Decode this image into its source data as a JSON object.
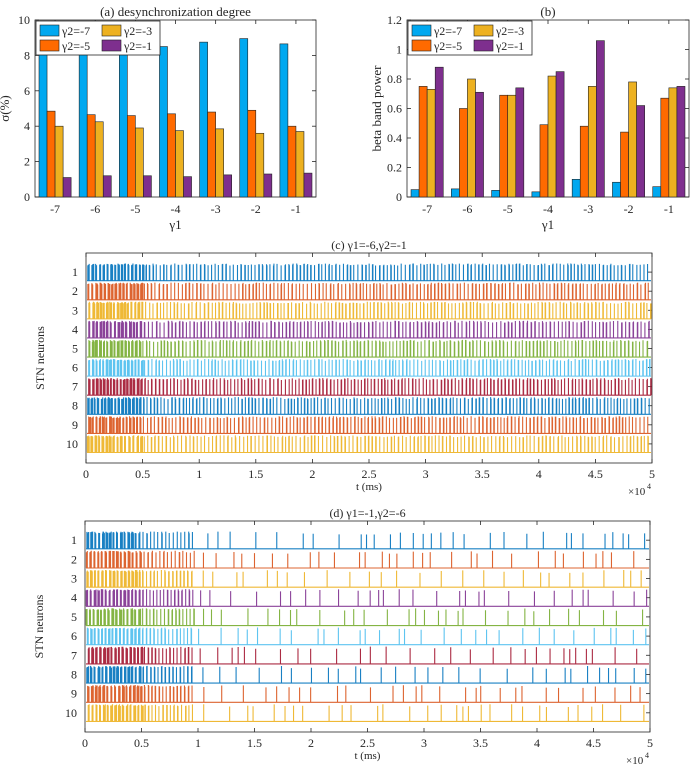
{
  "chart_data": [
    {
      "id": "a",
      "type": "bar",
      "title": "(a) desynchronization degree",
      "xlabel": "γ1",
      "ylabel": "σ(%)",
      "categories": [
        "-7",
        "-6",
        "-5",
        "-4",
        "-3",
        "-2",
        "-1"
      ],
      "ylim": [
        0,
        10
      ],
      "yticks": [
        "0",
        "2",
        "4",
        "6",
        "8",
        "10"
      ],
      "legend_position": "top-left",
      "series": [
        {
          "name": "γ2=-7",
          "color": "#00A8F0",
          "values": [
            8.15,
            8.25,
            8.35,
            8.5,
            8.75,
            8.95,
            8.65
          ]
        },
        {
          "name": "γ2=-5",
          "color": "#FF6A00",
          "values": [
            4.85,
            4.65,
            4.6,
            4.7,
            4.8,
            4.9,
            4.0
          ]
        },
        {
          "name": "γ2=-3",
          "color": "#EDB120",
          "values": [
            4.0,
            4.25,
            3.9,
            3.75,
            3.85,
            3.6,
            3.7
          ]
        },
        {
          "name": "γ2=-1",
          "color": "#7E2F8E",
          "values": [
            1.1,
            1.2,
            1.2,
            1.15,
            1.25,
            1.3,
            1.35
          ]
        }
      ]
    },
    {
      "id": "b",
      "type": "bar",
      "title": "(b)",
      "xlabel": "γ1",
      "ylabel": "beta band power",
      "categories": [
        "-7",
        "-6",
        "-5",
        "-4",
        "-3",
        "-2",
        "-1"
      ],
      "ylim": [
        0,
        1.2
      ],
      "yticks": [
        "0",
        "0.2",
        "0.4",
        "0.6",
        "0.8",
        "1",
        "1.2"
      ],
      "legend_position": "top-left",
      "series": [
        {
          "name": "γ2=-7",
          "color": "#00A8F0",
          "values": [
            0.05,
            0.055,
            0.045,
            0.035,
            0.12,
            0.1,
            0.07
          ]
        },
        {
          "name": "γ2=-5",
          "color": "#FF6A00",
          "values": [
            0.75,
            0.6,
            0.69,
            0.49,
            0.48,
            0.44,
            0.67
          ]
        },
        {
          "name": "γ2=-3",
          "color": "#EDB120",
          "values": [
            0.73,
            0.8,
            0.69,
            0.82,
            0.75,
            0.78,
            0.74
          ]
        },
        {
          "name": "γ2=-1",
          "color": "#7E2F8E",
          "values": [
            0.88,
            0.71,
            0.74,
            0.85,
            1.06,
            0.62,
            0.75
          ]
        }
      ]
    },
    {
      "id": "c",
      "type": "raster",
      "title": "(c) γ1=-6,γ2=-1",
      "xlabel": "t (ms)",
      "ylabel": "STN neurons",
      "x_multiplier": "×10",
      "x_multiplier_exp": "4",
      "xlim": [
        0,
        5
      ],
      "xticks": [
        "0",
        "0.5",
        "1",
        "1.5",
        "2",
        "2.5",
        "3",
        "3.5",
        "4",
        "4.5",
        "5"
      ],
      "neurons": [
        "1",
        "2",
        "3",
        "4",
        "5",
        "6",
        "7",
        "8",
        "9",
        "10"
      ],
      "colors": [
        "#0072BD",
        "#D95319",
        "#EDB120",
        "#7E2F8E",
        "#77AC30",
        "#4DBEEE",
        "#A2142F",
        "#0072BD",
        "#D95319",
        "#EDB120"
      ],
      "pattern": "periodic bursting throughout"
    },
    {
      "id": "d",
      "type": "raster",
      "title": "(d) γ1=-1,γ2=-6",
      "xlabel": "t (ms)",
      "ylabel": "STN neurons",
      "x_multiplier": "×10",
      "x_multiplier_exp": "4",
      "xlim": [
        0,
        5
      ],
      "xticks": [
        "0",
        "0.5",
        "1",
        "1.5",
        "2",
        "2.5",
        "3",
        "3.5",
        "4",
        "4.5",
        "5"
      ],
      "neurons": [
        "1",
        "2",
        "3",
        "4",
        "5",
        "6",
        "7",
        "8",
        "9",
        "10"
      ],
      "colors": [
        "#0072BD",
        "#D95319",
        "#EDB120",
        "#7E2F8E",
        "#77AC30",
        "#4DBEEE",
        "#A2142F",
        "#0072BD",
        "#D95319",
        "#EDB120"
      ],
      "pattern": "bursting until 1, sparse spiking after"
    }
  ]
}
